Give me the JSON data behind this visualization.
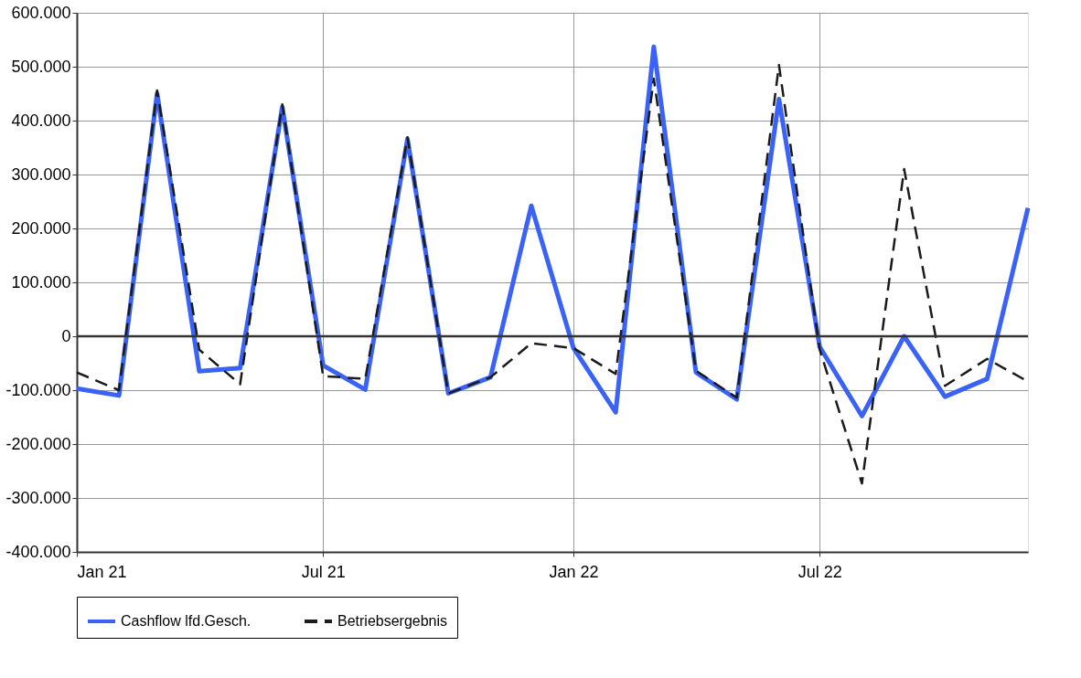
{
  "chart_data": {
    "type": "line",
    "x": [
      "2021-01",
      "2021-02",
      "2021-03",
      "2021-04",
      "2021-05",
      "2021-06",
      "2021-07",
      "2021-08",
      "2021-09",
      "2021-10",
      "2021-11",
      "2021-12",
      "2022-01",
      "2022-02",
      "2022-03",
      "2022-04",
      "2022-05",
      "2022-06",
      "2022-07",
      "2022-08",
      "2022-09",
      "2022-10",
      "2022-11",
      "2022-12"
    ],
    "series": [
      {
        "name": "Cashflow lfd.Gesch.",
        "color": "#3a63f5",
        "line_style": "solid",
        "values": [
          -97000,
          -110000,
          450000,
          -65000,
          -59000,
          425000,
          -54000,
          -99000,
          366000,
          -106000,
          -76000,
          242000,
          -22000,
          -141000,
          537000,
          -67000,
          -117000,
          440000,
          -20000,
          -148000,
          0,
          -112000,
          -79000,
          238000
        ]
      },
      {
        "name": "Betriebsergebnis",
        "color": "#1a1a1a",
        "line_style": "dashed",
        "values": [
          -67000,
          -100000,
          456000,
          -25000,
          -89000,
          430000,
          -74000,
          -79000,
          369000,
          -106000,
          -76000,
          -13000,
          -22000,
          -70000,
          478000,
          -64000,
          -114000,
          503000,
          -25000,
          -273000,
          310000,
          -92000,
          -42000,
          -84000
        ]
      }
    ],
    "xlim": [
      "2021-01",
      "2022-12"
    ],
    "xticks": [
      {
        "value": "2021-01",
        "label": "Jan 21"
      },
      {
        "value": "2021-07",
        "label": "Jul 21"
      },
      {
        "value": "2022-01",
        "label": "Jan 22"
      },
      {
        "value": "2022-07",
        "label": "Jul 22"
      }
    ],
    "ylim": [
      -400000,
      600000
    ],
    "yticks": [
      {
        "value": -400000,
        "label": "-400.000"
      },
      {
        "value": -300000,
        "label": "-300.000"
      },
      {
        "value": -200000,
        "label": "-200.000"
      },
      {
        "value": -100000,
        "label": "-100.000"
      },
      {
        "value": 0,
        "label": "0"
      },
      {
        "value": 100000,
        "label": "100.000"
      },
      {
        "value": 200000,
        "label": "200.000"
      },
      {
        "value": 300000,
        "label": "300.000"
      },
      {
        "value": 400000,
        "label": "400.000"
      },
      {
        "value": 500000,
        "label": "500.000"
      },
      {
        "value": 600000,
        "label": "600.000"
      }
    ],
    "ref_lines": [
      {
        "axis": "y",
        "value": 0,
        "color": "#333333"
      }
    ],
    "grid": true,
    "legend": "bottom",
    "marker": "none"
  }
}
